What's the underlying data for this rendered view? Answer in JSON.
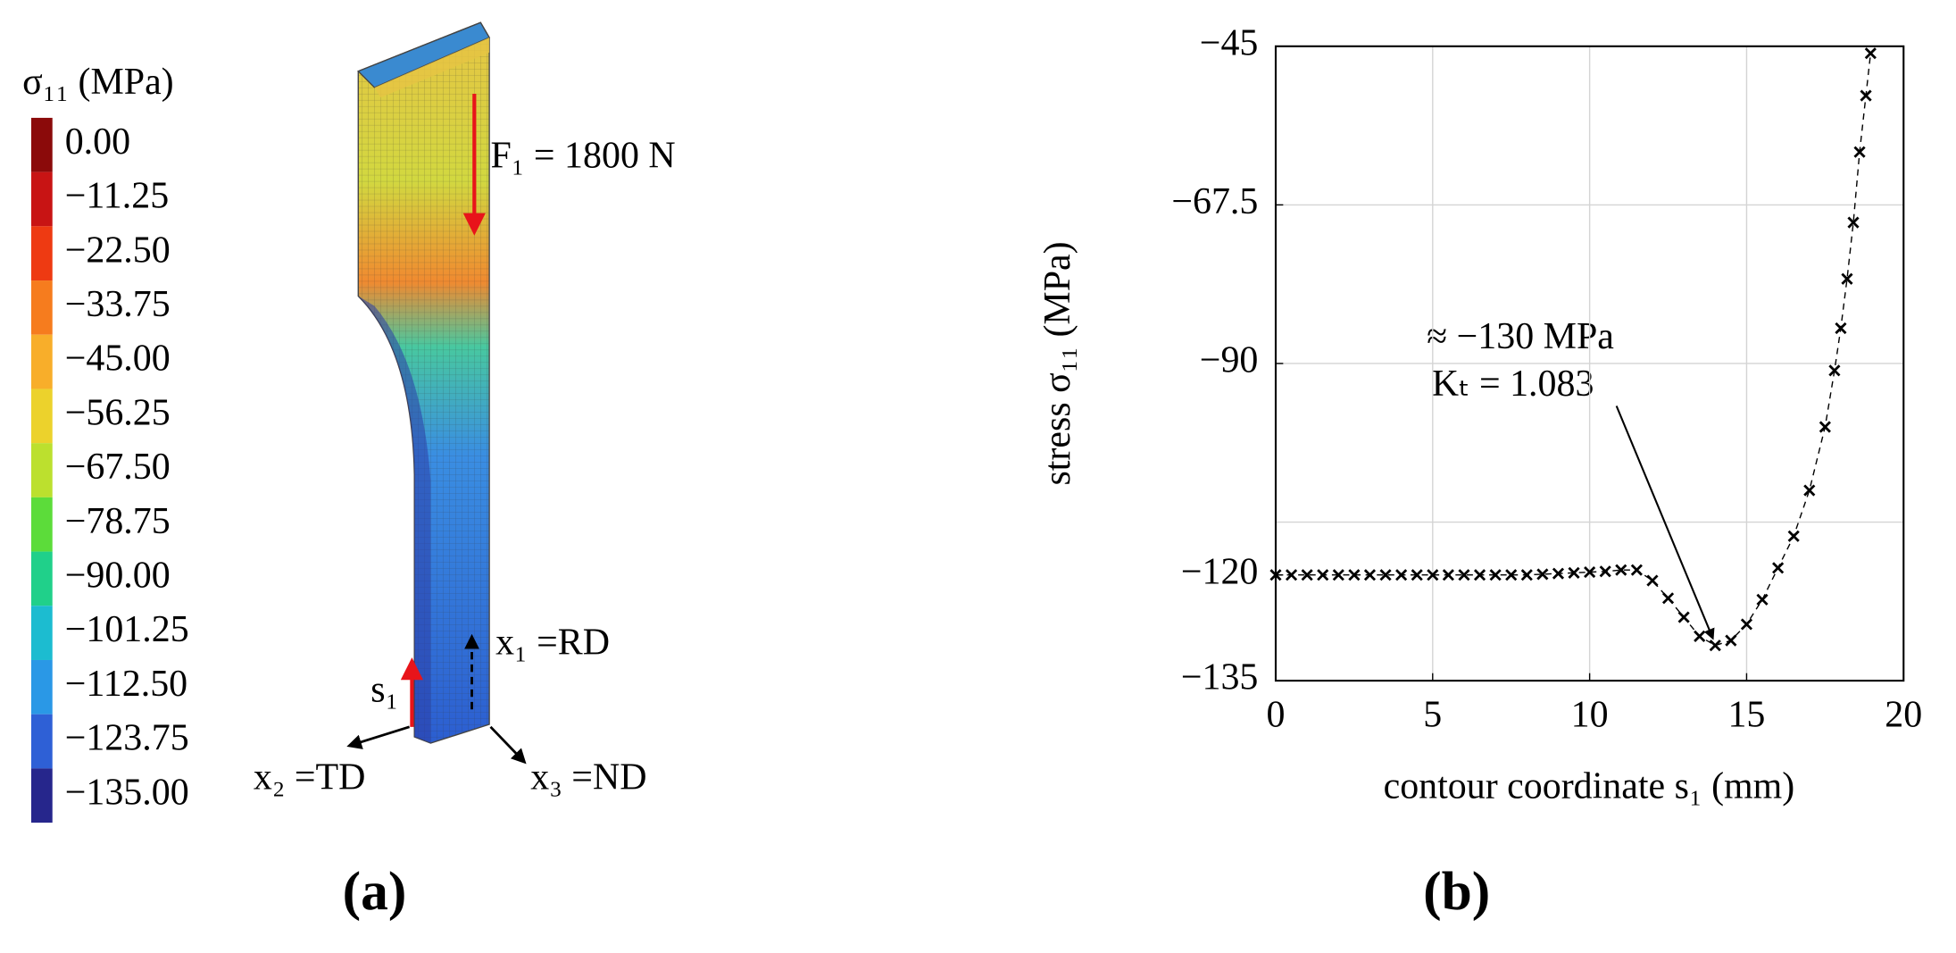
{
  "panel_a": {
    "label": "(a)",
    "colorbar": {
      "title": "σ₁₁ (MPa)",
      "ticks": [
        {
          "value": 0,
          "label": "0.00"
        },
        {
          "value": -11.25,
          "label": "−11.25"
        },
        {
          "value": -22.5,
          "label": "−22.50"
        },
        {
          "value": -33.75,
          "label": "−33.75"
        },
        {
          "value": -45,
          "label": "−45.00"
        },
        {
          "value": -56.25,
          "label": "−56.25"
        },
        {
          "value": -67.5,
          "label": "−67.50"
        },
        {
          "value": -78.75,
          "label": "−78.75"
        },
        {
          "value": -90,
          "label": "−90.00"
        },
        {
          "value": -101.25,
          "label": "−101.25"
        },
        {
          "value": -112.5,
          "label": "−112.50"
        },
        {
          "value": -123.75,
          "label": "−123.75"
        },
        {
          "value": -135,
          "label": "−135.00"
        }
      ],
      "colors": [
        "#8b0a0a",
        "#c81414",
        "#ee3a12",
        "#f67c1e",
        "#f8ae2a",
        "#ecd22c",
        "#bce02e",
        "#5cdc3a",
        "#20d08a",
        "#1cbcd0",
        "#2a98e6",
        "#2e60d6",
        "#26268c"
      ],
      "overflow_color": "#9a9a9a"
    },
    "force": "F₁ = 1800 N",
    "x1": "x₁ =RD",
    "s1": "s₁",
    "x2": "x₂ =TD",
    "x3": "x₃ =ND"
  },
  "chart_data": {
    "type": "scatter",
    "label": "(b)",
    "xlabel": "contour coordinate s₁ (mm)",
    "ylabel": "stress σ₁₁ (MPa)",
    "annotation": [
      "≈ −130 MPa",
      "Kₜ = 1.083"
    ],
    "annotation_point": [
      14,
      -130
    ],
    "marker": "x",
    "color": "#000000",
    "x": [
      0,
      0.5,
      1,
      1.5,
      2,
      2.5,
      3,
      3.5,
      4,
      4.5,
      5,
      5.5,
      6,
      6.5,
      7,
      7.5,
      8,
      8.5,
      9,
      9.5,
      10,
      10.5,
      11,
      11.5,
      12,
      12.5,
      13,
      13.5,
      14,
      14.5,
      15,
      15.5,
      16,
      16.5,
      17,
      17.5,
      17.8,
      18,
      18.2,
      18.4,
      18.6,
      18.8,
      18.95
    ],
    "values": [
      -120,
      -120,
      -120,
      -120,
      -120,
      -120,
      -120,
      -120,
      -120,
      -120,
      -120,
      -120,
      -120,
      -120,
      -120,
      -120,
      -120,
      -119.9,
      -119.8,
      -119.7,
      -119.6,
      -119.5,
      -119.3,
      -119.3,
      -120.8,
      -123.3,
      -126,
      -128.7,
      -130,
      -129.3,
      -127,
      -123.5,
      -119,
      -114.5,
      -108,
      -99,
      -91,
      -85,
      -78,
      -70,
      -60,
      -52,
      -46
    ],
    "xlim": [
      0,
      20
    ],
    "ylim": [
      -135,
      -45
    ],
    "xticks": [
      0,
      5,
      10,
      15,
      20
    ],
    "yticks": [
      {
        "value": -45,
        "label": "−45"
      },
      {
        "value": -67.5,
        "label": "−67.5"
      },
      {
        "value": -90,
        "label": "−90"
      },
      {
        "value": -120,
        "label": "−120"
      },
      {
        "value": -135,
        "label": "−135"
      }
    ],
    "ygrid": [
      -45,
      -67.5,
      -90,
      -112.5,
      -135
    ],
    "grid": true
  }
}
